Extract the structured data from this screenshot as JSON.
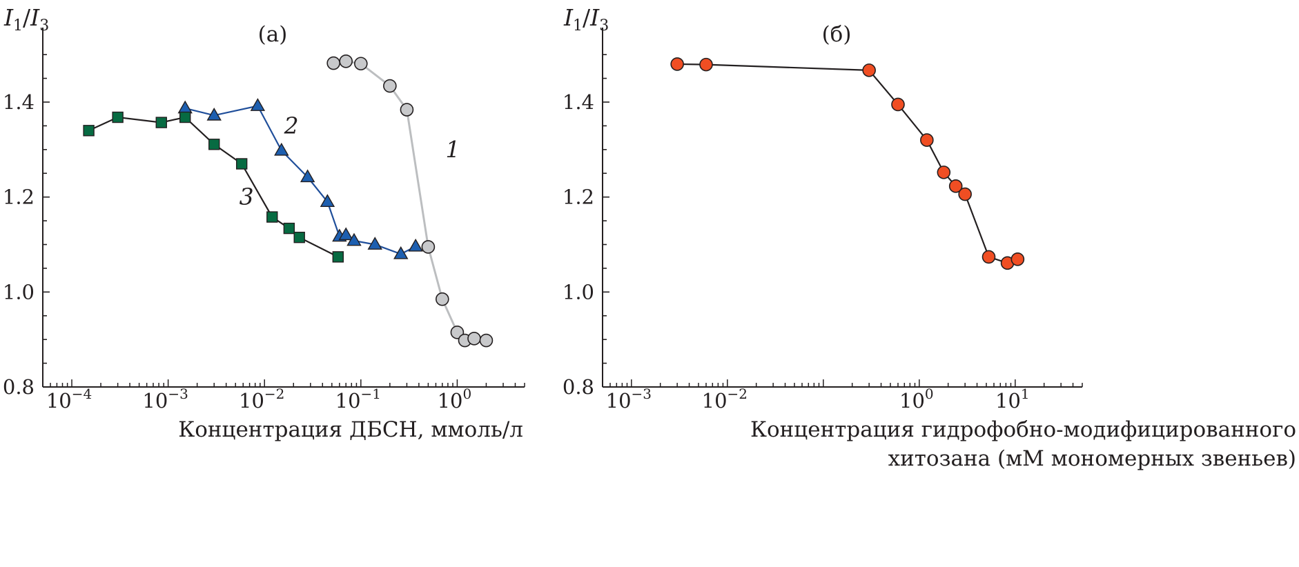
{
  "chart_data": [
    {
      "panel_label": "(а)",
      "type": "line",
      "x_scale": "log",
      "xlim": [
        5e-05,
        5
      ],
      "ylim": [
        0.8,
        1.55
      ],
      "xlabel": "Концентрация ДБСН, ммоль/л",
      "ylabel": {
        "main": "I",
        "sub1": "1",
        "slash": "/",
        "main2": "I",
        "sub2": "3"
      },
      "x_ticks": [
        {
          "value": 0.0001,
          "base": "10",
          "exp": "−4"
        },
        {
          "value": 0.001,
          "base": "10",
          "exp": "−3"
        },
        {
          "value": 0.01,
          "base": "10",
          "exp": "−2"
        },
        {
          "value": 0.1,
          "base": "10",
          "exp": "−1"
        },
        {
          "value": 1,
          "base": "10",
          "exp": "0"
        }
      ],
      "y_ticks": [
        {
          "value": 0.8,
          "label": "0.8"
        },
        {
          "value": 1.0,
          "label": "1.0"
        },
        {
          "value": 1.2,
          "label": "1.2"
        },
        {
          "value": 1.4,
          "label": "1.4"
        }
      ],
      "series": [
        {
          "name": "1",
          "marker": "circle",
          "line_color": "#bcbec0",
          "fill": "#c8c9cb",
          "label_anchor": {
            "x": 0.9,
            "y": 1.3
          },
          "x": [
            0.052,
            0.07,
            0.1,
            0.2,
            0.3,
            0.5,
            0.7,
            1.0,
            1.2,
            1.5,
            2.0
          ],
          "y": [
            1.482,
            1.486,
            1.481,
            1.434,
            1.384,
            1.095,
            0.985,
            0.915,
            0.898,
            0.902,
            0.898
          ]
        },
        {
          "name": "2",
          "marker": "triangle",
          "line_color": "#1f4e9a",
          "fill": "#1d5fb0",
          "label_anchor": {
            "x": 0.019,
            "y": 1.35
          },
          "x": [
            0.0015,
            0.003,
            0.0085,
            0.015,
            0.028,
            0.045,
            0.06,
            0.07,
            0.085,
            0.14,
            0.26,
            0.37
          ],
          "y": [
            1.387,
            1.372,
            1.392,
            1.298,
            1.242,
            1.19,
            1.117,
            1.12,
            1.108,
            1.1,
            1.08,
            1.096
          ]
        },
        {
          "name": "3",
          "marker": "square",
          "line_color": "#231f20",
          "fill": "#076b42",
          "label_anchor": {
            "x": 0.0065,
            "y": 1.2
          },
          "x": [
            0.00015,
            0.0003,
            0.00085,
            0.0015,
            0.003,
            0.0058,
            0.012,
            0.018,
            0.023,
            0.058
          ],
          "y": [
            1.34,
            1.368,
            1.357,
            1.368,
            1.311,
            1.27,
            1.158,
            1.134,
            1.115,
            1.074
          ]
        }
      ]
    },
    {
      "panel_label": "(б)",
      "type": "line",
      "x_scale": "log",
      "xlim": [
        0.0005,
        50
      ],
      "ylim": [
        0.8,
        1.55
      ],
      "xlabel_line1": "Концентрация гидрофобно-модифицированного",
      "xlabel_line2": "хитозана (мМ мономерных звеньев)",
      "ylabel": {
        "main": "I",
        "sub1": "1",
        "slash": "/",
        "main2": "I",
        "sub2": "3"
      },
      "x_ticks": [
        {
          "value": 0.001,
          "base": "10",
          "exp": "−3"
        },
        {
          "value": 0.01,
          "base": "10",
          "exp": "−2"
        },
        {
          "value": 1,
          "base": "10",
          "exp": "0"
        },
        {
          "value": 10,
          "base": "10",
          "exp": "1"
        }
      ],
      "y_ticks": [
        {
          "value": 0.8,
          "label": "0.8"
        },
        {
          "value": 1.0,
          "label": "1.0"
        },
        {
          "value": 1.2,
          "label": "1.2"
        },
        {
          "value": 1.4,
          "label": "1.4"
        }
      ],
      "series": [
        {
          "marker": "circle",
          "line_color": "#231f20",
          "fill": "#f04e23",
          "x": [
            0.003,
            0.006,
            0.3,
            0.6,
            1.2,
            1.8,
            2.4,
            3.0,
            5.3,
            8.3,
            10.6
          ],
          "y": [
            1.48,
            1.479,
            1.467,
            1.395,
            1.32,
            1.252,
            1.223,
            1.206,
            1.074,
            1.061,
            1.069
          ]
        }
      ]
    }
  ]
}
